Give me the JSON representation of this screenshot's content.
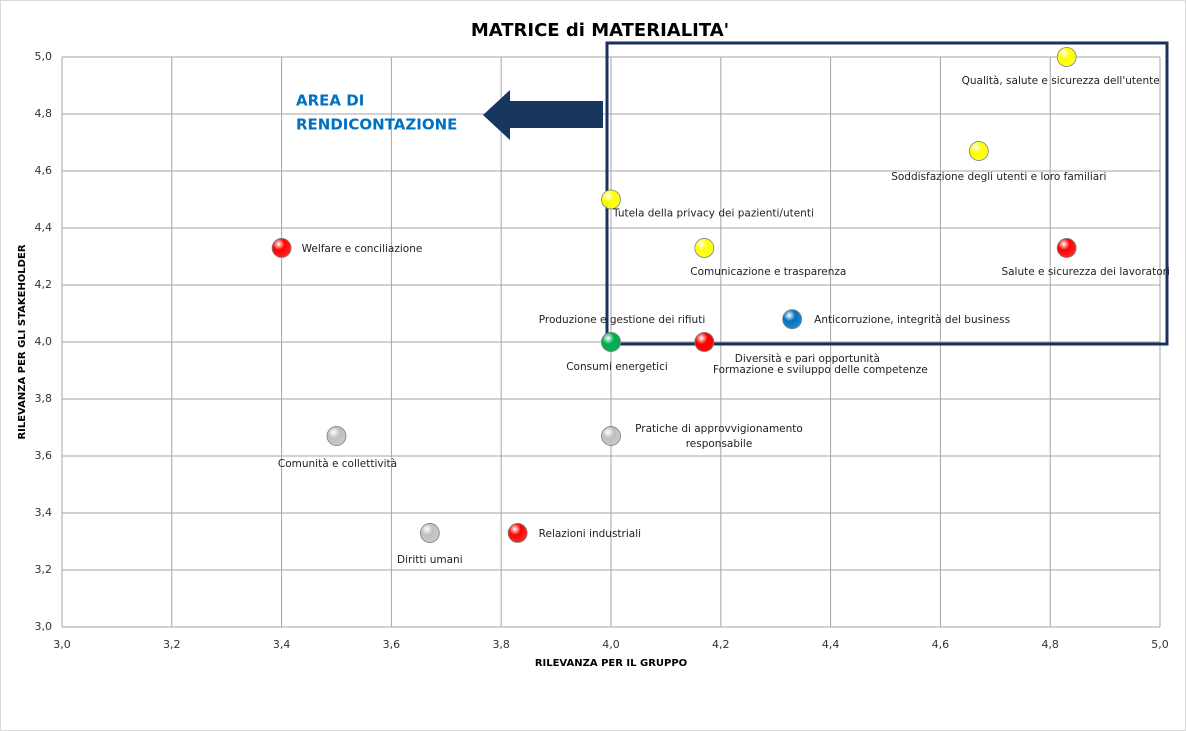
{
  "chart_data": {
    "type": "scatter",
    "title": "MATRICE di MATERIALITA'",
    "xlabel": "RILEVANZA PER IL GRUPPO",
    "ylabel": "RILEVANZA PER GLI STAKEHOLDER",
    "annotation": [
      "AREA DI",
      "RENDICONTAZIONE"
    ],
    "xlim": [
      3.0,
      5.0
    ],
    "ylim": [
      3.0,
      5.0
    ],
    "xticks": [
      {
        "value": 3.0,
        "label": "3,0"
      },
      {
        "value": 3.2,
        "label": "3,2"
      },
      {
        "value": 3.4,
        "label": "3,4"
      },
      {
        "value": 3.6,
        "label": "3,6"
      },
      {
        "value": 3.8,
        "label": "3,8"
      },
      {
        "value": 4.0,
        "label": "4,0"
      },
      {
        "value": 4.2,
        "label": "4,2"
      },
      {
        "value": 4.4,
        "label": "4,4"
      },
      {
        "value": 4.6,
        "label": "4,6"
      },
      {
        "value": 4.8,
        "label": "4,8"
      },
      {
        "value": 5.0,
        "label": "5,0"
      }
    ],
    "yticks": [
      {
        "value": 3.0,
        "label": "3,0"
      },
      {
        "value": 3.2,
        "label": "3,2"
      },
      {
        "value": 3.4,
        "label": "3,4"
      },
      {
        "value": 3.6,
        "label": "3,6"
      },
      {
        "value": 3.8,
        "label": "3,8"
      },
      {
        "value": 4.0,
        "label": "4,0"
      },
      {
        "value": 4.2,
        "label": "4,2"
      },
      {
        "value": 4.4,
        "label": "4,4"
      },
      {
        "value": 4.6,
        "label": "4,6"
      },
      {
        "value": 4.8,
        "label": "4,8"
      },
      {
        "value": 5.0,
        "label": "5,0"
      }
    ],
    "grid": true,
    "points": [
      {
        "name": "Qualità, salute e sicurezza dell'utente",
        "x": 4.83,
        "y": 5.0,
        "color": "#ffff00"
      },
      {
        "name": "Soddisfazione degli utenti e loro familiari",
        "x": 4.67,
        "y": 4.67,
        "color": "#ffff00"
      },
      {
        "name": "Tutela della privacy dei pazienti/utenti",
        "x": 4.0,
        "y": 4.5,
        "color": "#ffff00"
      },
      {
        "name": "Welfare e conciliazione",
        "x": 3.4,
        "y": 4.33,
        "color": "#ff0000"
      },
      {
        "name": "Comunicazione e trasparenza",
        "x": 4.17,
        "y": 4.33,
        "color": "#ffff00"
      },
      {
        "name": "Salute e sicurezza dei lavoratori",
        "x": 4.83,
        "y": 4.33,
        "color": "#ff0000"
      },
      {
        "name": "Anticorruzione, integrità del business",
        "x": 4.33,
        "y": 4.08,
        "color": "#0070c0"
      },
      {
        "name": "Produzione e gestione dei rifiuti",
        "x": 4.0,
        "y": 4.0,
        "color": "#00b050"
      },
      {
        "name": "Consumi energetici",
        "x": 4.0,
        "y": 4.0,
        "color": "#00b050"
      },
      {
        "name": "Diversità e pari opportunità",
        "x": 4.17,
        "y": 4.0,
        "color": "#ff0000"
      },
      {
        "name": "Formazione e sviluppo delle competenze",
        "x": 4.17,
        "y": 4.0,
        "color": "#ff0000"
      },
      {
        "name": [
          "Pratiche di approvvigionamento",
          "responsabile"
        ],
        "x": 4.0,
        "y": 3.67,
        "color": "#bfbfbf"
      },
      {
        "name": "Comunità e collettività",
        "x": 3.5,
        "y": 3.67,
        "color": "#bfbfbf"
      },
      {
        "name": "Diritti umani",
        "x": 3.67,
        "y": 3.33,
        "color": "#bfbfbf"
      },
      {
        "name": "Relazioni industriali",
        "x": 3.83,
        "y": 3.33,
        "color": "#ff0000"
      }
    ]
  }
}
